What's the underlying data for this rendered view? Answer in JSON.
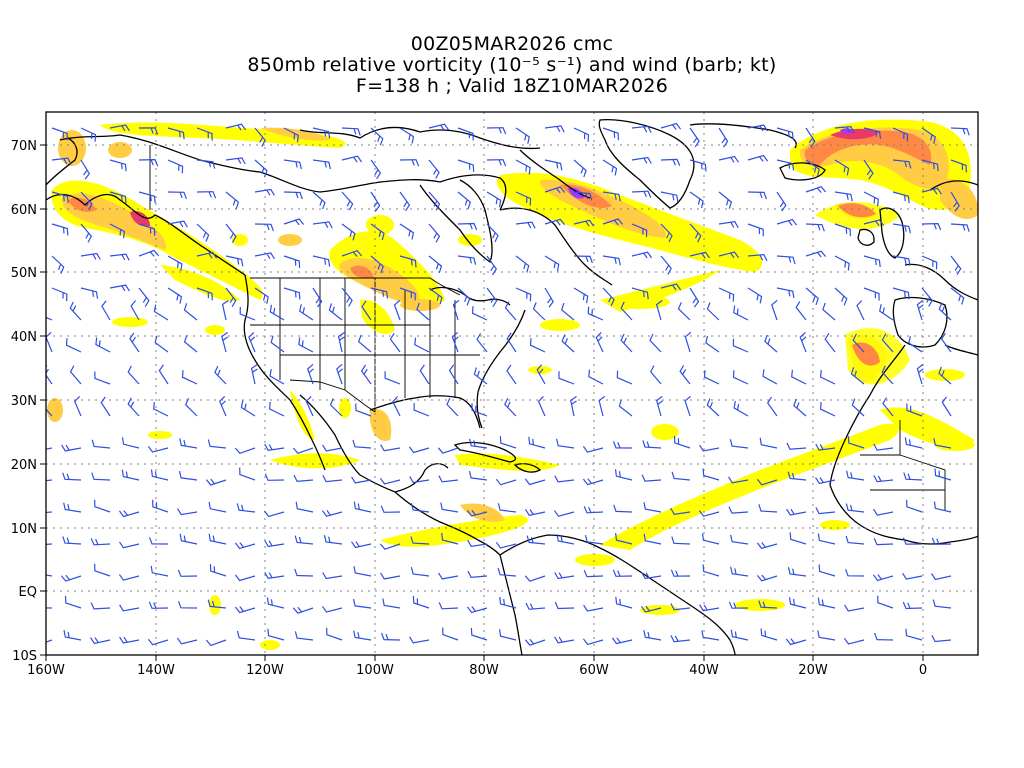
{
  "header": {
    "line1": "00Z05MAR2026 cmc",
    "line2": "850mb relative vorticity (10⁻⁵ s⁻¹) and wind (barb; kt)",
    "line3": "F=138 h ; Valid 18Z10MAR2026"
  },
  "axes": {
    "lon_labels": [
      "160W",
      "140W",
      "120W",
      "100W",
      "80W",
      "60W",
      "40W",
      "20W",
      "0"
    ],
    "lat_labels": [
      "70N",
      "60N",
      "50N",
      "40N",
      "30N",
      "20N",
      "10N",
      "EQ",
      "10S"
    ]
  },
  "chart_data": {
    "type": "heatmap",
    "lon_range": [
      -160,
      10
    ],
    "lat_range": [
      -10,
      75
    ],
    "grid": true,
    "field": "850mb relative vorticity",
    "colors": {
      "low": "#ffff00",
      "mid": "#ffcc44",
      "high": "#ff8844",
      "peak": "#e83a6a",
      "max": "#9a3cff",
      "barbs": "#2f4fe0",
      "coast": "#000000",
      "grid": "#808080"
    },
    "wind_barbs": "blue barbs plotted on regular grid (kt)"
  }
}
